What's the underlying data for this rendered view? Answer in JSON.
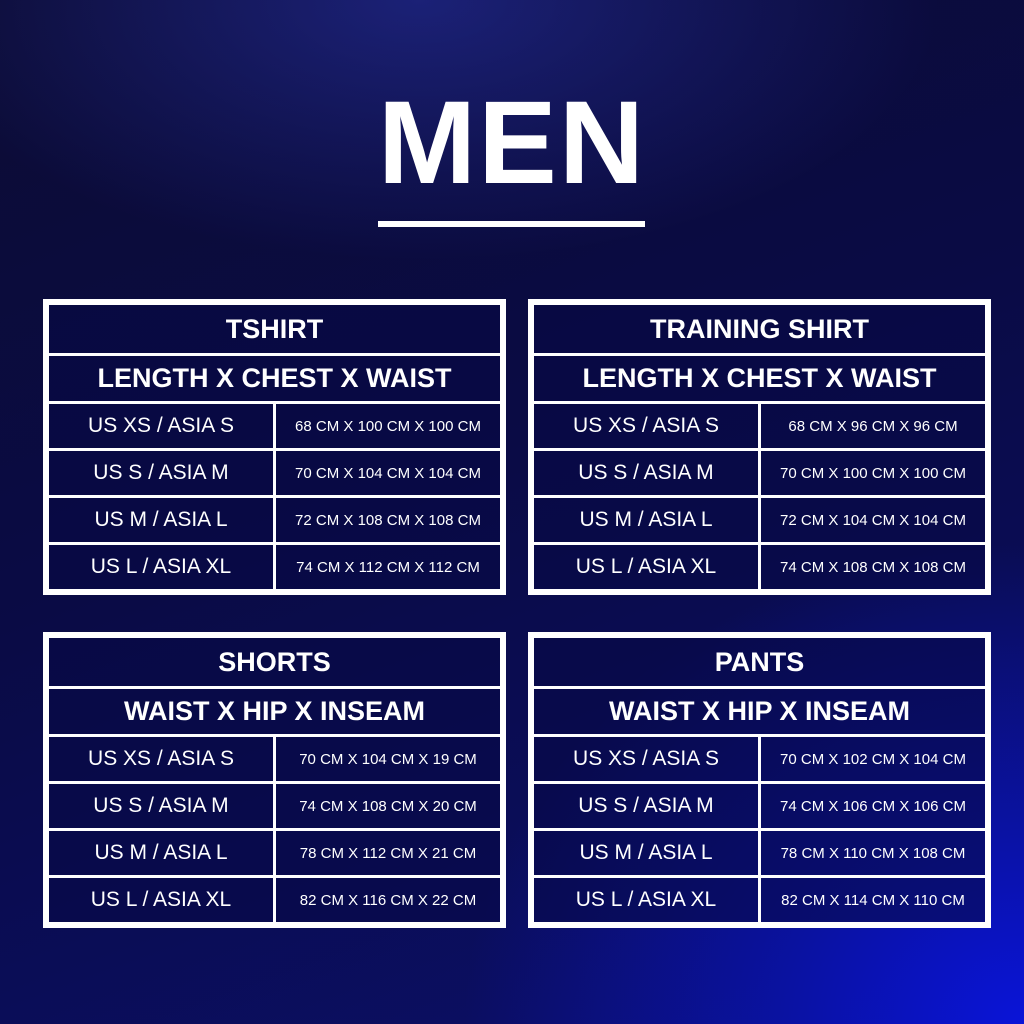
{
  "title": "MEN",
  "charts": [
    {
      "name": "TSHIRT",
      "measure": "LENGTH X CHEST X WAIST",
      "rows": [
        {
          "size": "US XS / ASIA S",
          "value": "68 CM X 100 CM X 100 CM"
        },
        {
          "size": "US S / ASIA M",
          "value": "70 CM X 104 CM X 104 CM"
        },
        {
          "size": "US M / ASIA L",
          "value": "72 CM X 108 CM X 108 CM"
        },
        {
          "size": "US L / ASIA XL",
          "value": "74 CM X 112 CM X 112 CM"
        }
      ]
    },
    {
      "name": "TRAINING SHIRT",
      "measure": "LENGTH X CHEST X WAIST",
      "rows": [
        {
          "size": "US XS / ASIA S",
          "value": "68 CM X 96 CM X 96 CM"
        },
        {
          "size": "US S / ASIA M",
          "value": "70 CM X 100 CM X 100 CM"
        },
        {
          "size": "US M / ASIA L",
          "value": "72 CM X 104 CM X 104 CM"
        },
        {
          "size": "US L / ASIA XL",
          "value": "74 CM X 108 CM X 108 CM"
        }
      ]
    },
    {
      "name": "SHORTS",
      "measure": "WAIST X HIP X INSEAM",
      "rows": [
        {
          "size": "US XS / ASIA S",
          "value": "70 CM X 104 CM X 19 CM"
        },
        {
          "size": "US S / ASIA M",
          "value": "74 CM X 108 CM X 20 CM"
        },
        {
          "size": "US M / ASIA L",
          "value": "78 CM X 112 CM X 21 CM"
        },
        {
          "size": "US L / ASIA XL",
          "value": "82 CM X 116 CM X 22 CM"
        }
      ]
    },
    {
      "name": "PANTS",
      "measure": "WAIST X HIP X INSEAM",
      "rows": [
        {
          "size": "US XS / ASIA S",
          "value": "70 CM X 102 CM X 104 CM"
        },
        {
          "size": "US S / ASIA M",
          "value": "74 CM X 106 CM X 106 CM"
        },
        {
          "size": "US M / ASIA L",
          "value": "78 CM X 110 CM X 108 CM"
        },
        {
          "size": "US L / ASIA XL",
          "value": "82 CM X 114 CM X 110 CM"
        }
      ]
    }
  ]
}
